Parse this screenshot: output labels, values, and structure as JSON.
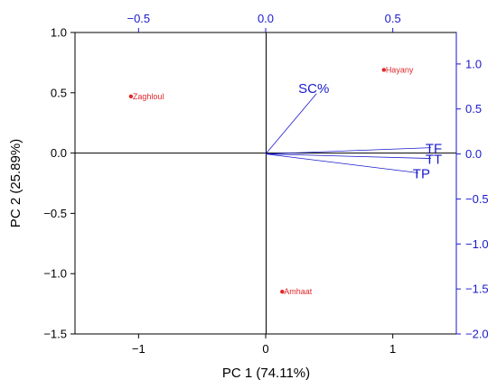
{
  "chart_data": {
    "type": "scatter",
    "subtype": "pca-biplot",
    "xlabel": "PC 1 (74.11%)",
    "ylabel": "PC 2 (25.89%)",
    "xlim": [
      -1.5,
      1.5
    ],
    "ylim": [
      -1.5,
      1.0
    ],
    "x_ticks": [
      -1,
      0,
      1
    ],
    "x_tick_labels": [
      "−1",
      "0",
      "1"
    ],
    "y_ticks": [
      -1.5,
      -1.0,
      -0.5,
      0.0,
      0.5,
      1.0
    ],
    "y_tick_labels": [
      "−1.5",
      "−1.0",
      "−0.5",
      "0.0",
      "0.5",
      "1.0"
    ],
    "top_axis": {
      "lim": [
        -0.75,
        0.75
      ],
      "ticks": [
        -0.5,
        0.0,
        0.5
      ],
      "tick_labels": [
        "−0.5",
        "0.0",
        "0.5"
      ],
      "color": "#1a1acc"
    },
    "right_axis": {
      "lim": [
        -2.0,
        1.35
      ],
      "ticks": [
        -2.0,
        -1.5,
        -1.0,
        -0.5,
        0.0,
        0.5,
        1.0
      ],
      "tick_labels": [
        "−2.0",
        "−1.5",
        "−1.0",
        "−0.5",
        "0.0",
        "0.5",
        "1.0"
      ],
      "color": "#1a1acc"
    },
    "scores": [
      {
        "name": "Zaghloul",
        "x": -1.06,
        "y": 0.47
      },
      {
        "name": "Hayany",
        "x": 0.93,
        "y": 0.69
      },
      {
        "name": "Amhaat",
        "x": 0.13,
        "y": -1.15
      }
    ],
    "loadings": [
      {
        "name": "SC%",
        "x": 0.2,
        "y": 0.67
      },
      {
        "name": "TF",
        "x": 0.65,
        "y": 0.07
      },
      {
        "name": "TT",
        "x": 0.65,
        "y": -0.05
      },
      {
        "name": "TP",
        "x": 0.6,
        "y": -0.21
      }
    ],
    "score_color": "#e0262b",
    "loading_color": "#1a1acc",
    "grid": false,
    "reference_lines": [
      "x=0",
      "y=0"
    ]
  }
}
